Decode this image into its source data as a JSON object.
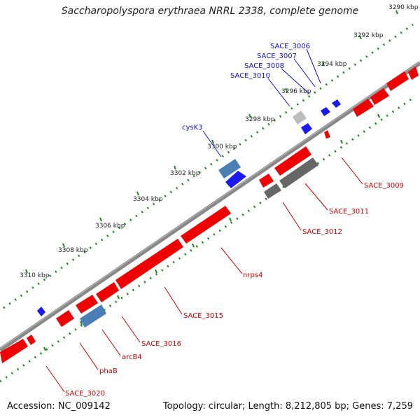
{
  "title": "Saccharopolyspora erythraea NRRL 2338, complete genome",
  "footer": {
    "accession": "Accession: NC_009142",
    "summary": "Topology: circular; Length: 8,212,805 bp; Genes: 7,259"
  },
  "colors": {
    "forward_gene": "#ee0000",
    "reverse_gene": "#1a1aee",
    "gene_blue_steel": "#4a7fb5",
    "gene_dark_gray": "#666666",
    "gene_light_gray": "#bdbdbd",
    "axis": "#888888",
    "ticks": "#1a8a1a",
    "label_forward": "#cc0000",
    "label_reverse": "#1111cc"
  },
  "ruler": {
    "tick_labels": [
      "3290 kbp",
      "3292 kbp",
      "3294 kbp",
      "3296 kbp",
      "3298 kbp",
      "3300 kbp",
      "3302 kbp",
      "3304 kbp",
      "3306 kbp",
      "3308 kbp",
      "3310 kbp"
    ]
  },
  "gene_labels": {
    "reverse_strand": [
      "SACE_3006",
      "SACE_3007",
      "SACE_3008",
      "SACE_3010",
      "cysK3"
    ],
    "forward_strand": [
      "SACE_3009",
      "SACE_3011",
      "SACE_3012",
      "nrps4",
      "SACE_3015",
      "SACE_3016",
      "arcB4",
      "phaB",
      "SACE_3020"
    ]
  }
}
